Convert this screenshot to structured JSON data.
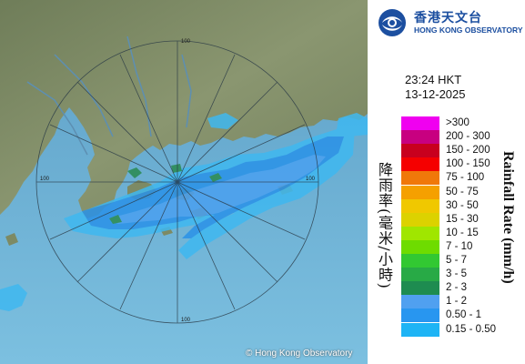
{
  "map": {
    "copyright": "© Hong Kong Observatory",
    "range_labels": [
      "100",
      "100",
      "100",
      "100"
    ],
    "sea_color": "#6fb3d8",
    "land_color": "#7d8a64"
  },
  "logo": {
    "name_cn": "香港天文台",
    "name_en": "HONG KONG OBSERVATORY"
  },
  "timestamp": {
    "time": "23:24 HKT",
    "date": "13-12-2025"
  },
  "legend": {
    "title_cn": "降雨率(毫米/小時)",
    "title_en": "Rainfall Rate (mm/h)",
    "items": [
      {
        "label": ">300",
        "color": "#f000f0"
      },
      {
        "label": "200 - 300",
        "color": "#c80080"
      },
      {
        "label": "150 - 200",
        "color": "#c8001e"
      },
      {
        "label": "100 - 150",
        "color": "#f50000"
      },
      {
        "label": "75 - 100",
        "color": "#f0780a"
      },
      {
        "label": "50 - 75",
        "color": "#f5a000"
      },
      {
        "label": "30 - 50",
        "color": "#f0c800"
      },
      {
        "label": "15 - 30",
        "color": "#dcd200"
      },
      {
        "label": "10 - 15",
        "color": "#a0e600"
      },
      {
        "label": "7 - 10",
        "color": "#6edc00"
      },
      {
        "label": "5 - 7",
        "color": "#32c832"
      },
      {
        "label": "3 - 5",
        "color": "#28aa46"
      },
      {
        "label": "2 - 3",
        "color": "#1e8c50"
      },
      {
        "label": "1 - 2",
        "color": "#50a0f0"
      },
      {
        "label": "0.50 - 1",
        "color": "#2896f0"
      },
      {
        "label": "0.15 - 0.50",
        "color": "#1eb4f5"
      }
    ]
  }
}
